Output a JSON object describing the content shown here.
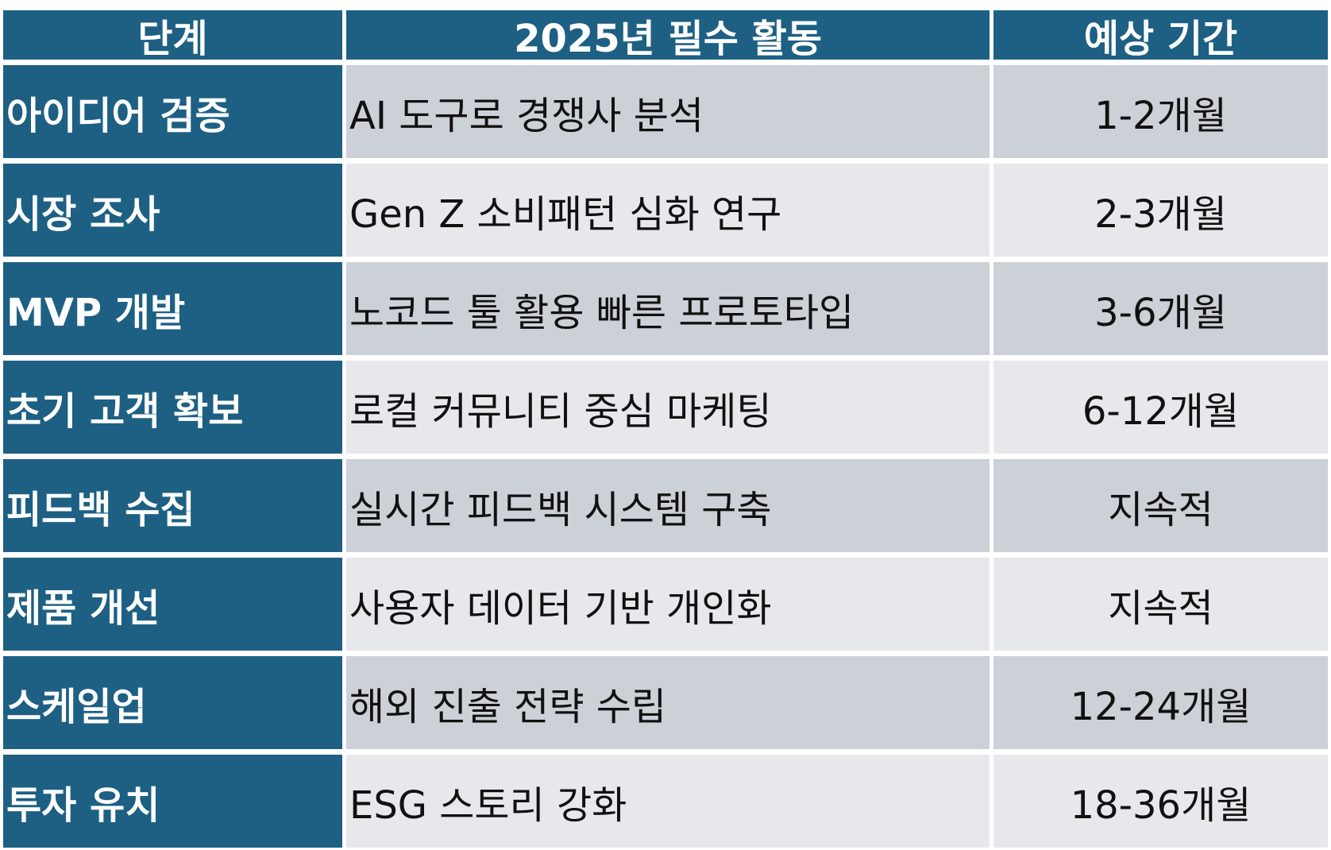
{
  "headers": {
    "stage": "단계",
    "activity": "2025년 필수 활동",
    "period": "예상 기간"
  },
  "rows": [
    {
      "stage": "아이디어 검증",
      "activity": "AI 도구로 경쟁사 분석",
      "period": "1-2개월"
    },
    {
      "stage": "시장 조사",
      "activity": "Gen Z 소비패턴 심화 연구",
      "period": "2-3개월"
    },
    {
      "stage": "MVP 개발",
      "activity": "노코드 툴 활용 빠른 프로토타입",
      "period": "3-6개월"
    },
    {
      "stage": "초기 고객 확보",
      "activity": "로컬 커뮤니티 중심 마케팅",
      "period": "6-12개월"
    },
    {
      "stage": "피드백 수집",
      "activity": "실시간 피드백 시스템 구축",
      "period": "지속적"
    },
    {
      "stage": "제품 개선",
      "activity": "사용자 데이터 기반 개인화",
      "period": "지속적"
    },
    {
      "stage": "스케일업",
      "activity": "해외 진출 전략 수립",
      "period": "12-24개월"
    },
    {
      "stage": "투자 유치",
      "activity": "ESG 스토리 강화",
      "period": "18-36개월"
    }
  ],
  "colors": {
    "header_bg": "#1d6083",
    "row_odd_bg": "#ccd0d7",
    "row_even_bg": "#e6e8eb"
  }
}
